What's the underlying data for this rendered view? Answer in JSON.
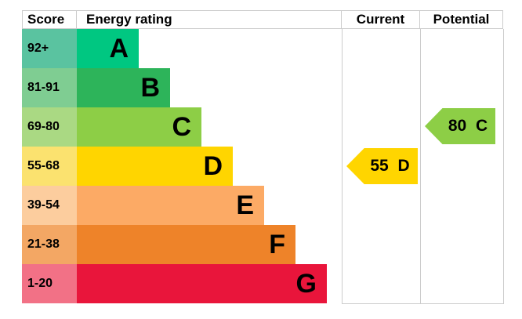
{
  "chart_data": {
    "type": "bar",
    "title": "Energy rating chart (EPC)",
    "headers": {
      "score": "Score",
      "rating": "Energy rating",
      "current": "Current",
      "potential": "Potential"
    },
    "bands": [
      {
        "range": "92+",
        "letter": "A",
        "bar_color": "#00c781",
        "score_color": "#5ac3a0"
      },
      {
        "range": "81-91",
        "letter": "B",
        "bar_color": "#2db45a",
        "score_color": "#7fcd92"
      },
      {
        "range": "69-80",
        "letter": "C",
        "bar_color": "#8dce46",
        "score_color": "#aad983"
      },
      {
        "range": "55-68",
        "letter": "D",
        "bar_color": "#ffd500",
        "score_color": "#fbe26f"
      },
      {
        "range": "39-54",
        "letter": "E",
        "bar_color": "#fcaa65",
        "score_color": "#fccd9e"
      },
      {
        "range": "21-38",
        "letter": "F",
        "bar_color": "#ee8329",
        "score_color": "#f3a764"
      },
      {
        "range": "1-20",
        "letter": "G",
        "bar_color": "#e9153b",
        "score_color": "#f27186"
      }
    ],
    "markers": {
      "current": {
        "label": "55 D",
        "value": 55,
        "band": "D",
        "color": "#ffd500"
      },
      "potential": {
        "label": "80 C",
        "value": 80,
        "band": "C",
        "color": "#8dce46"
      }
    },
    "grid_color": "#cccccc",
    "text_color": "#000000"
  }
}
